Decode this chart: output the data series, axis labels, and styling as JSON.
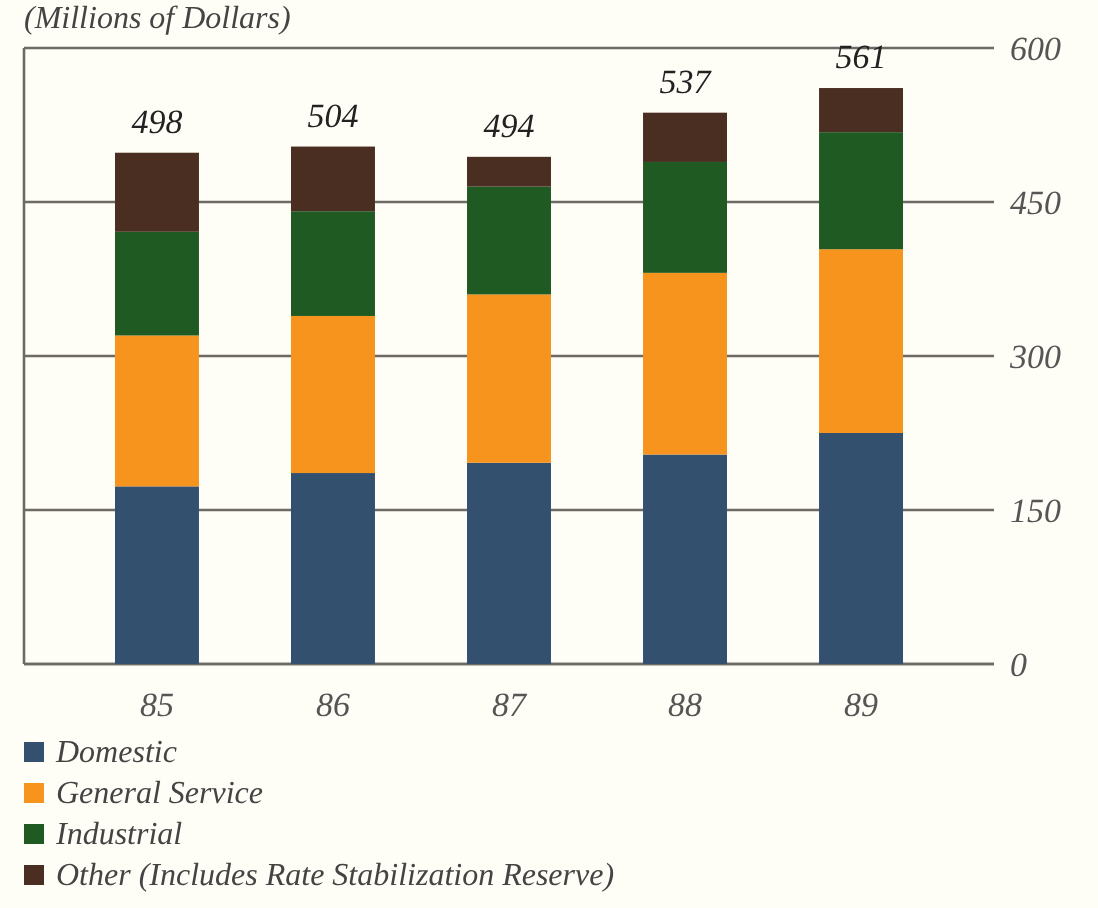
{
  "chart_data": {
    "type": "bar",
    "ylabel": "(Millions of Dollars)",
    "categories": [
      "85",
      "86",
      "87",
      "88",
      "89"
    ],
    "series": [
      {
        "name": "Domestic",
        "color": "#34506f",
        "values": [
          173,
          186,
          196,
          204,
          225
        ]
      },
      {
        "name": "General Service",
        "color": "#f7941d",
        "values": [
          147,
          153,
          164,
          177,
          179
        ]
      },
      {
        "name": "Industrial",
        "color": "#1f5a22",
        "values": [
          101,
          102,
          105,
          108,
          114
        ]
      },
      {
        "name": "Other (Includes Rate Stabilization Reserve)",
        "color": "#4a2e22",
        "values": [
          77,
          63,
          29,
          48,
          43
        ]
      }
    ],
    "stacked": true,
    "ylim": [
      0,
      600
    ],
    "yticks": [
      0,
      150,
      300,
      450,
      600
    ],
    "grid": "y",
    "legend": "bottom left",
    "totals": [
      "498",
      "504",
      "494",
      "537",
      "561"
    ]
  }
}
